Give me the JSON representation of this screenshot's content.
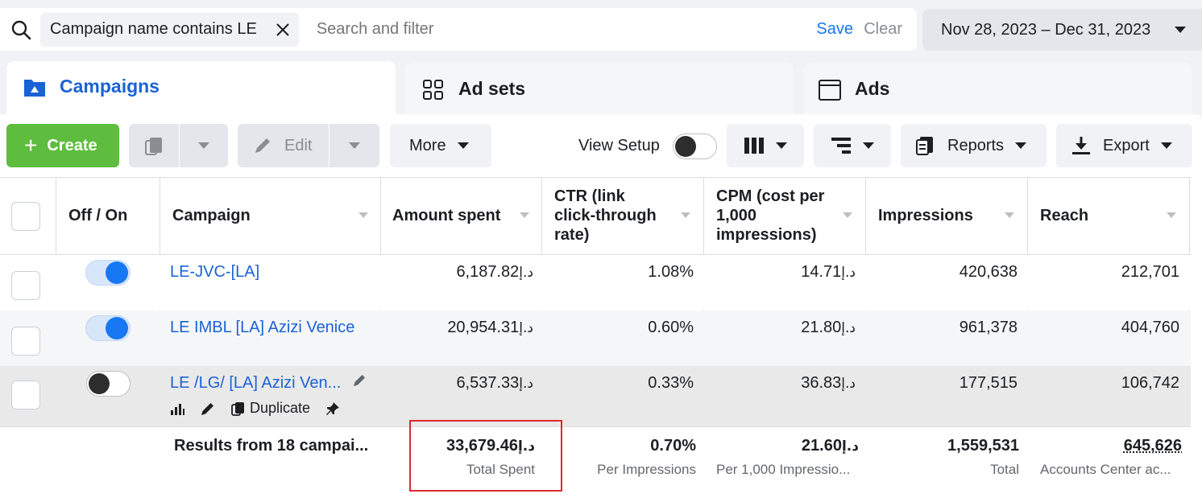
{
  "search": {
    "filter_chip": "Campaign name contains LE",
    "placeholder": "Search and filter",
    "save_label": "Save",
    "clear_label": "Clear"
  },
  "date_range": "Nov 28, 2023 – Dec 31, 2023",
  "tabs": [
    {
      "label": "Campaigns",
      "icon": "folder-icon",
      "active": true
    },
    {
      "label": "Ad sets",
      "icon": "grid-icon",
      "active": false
    },
    {
      "label": "Ads",
      "icon": "window-icon",
      "active": false
    }
  ],
  "toolbar": {
    "create_label": "Create",
    "edit_label": "Edit",
    "more_label": "More",
    "view_setup_label": "View Setup",
    "reports_label": "Reports",
    "export_label": "Export"
  },
  "columns": {
    "off_on": "Off / On",
    "campaign": "Campaign",
    "amount_spent": "Amount spent",
    "ctr": "CTR (link click-through rate)",
    "cpm": "CPM (cost per 1,000 impressions)",
    "impressions": "Impressions",
    "reach": "Reach"
  },
  "currency_symbol": "د.إ",
  "rows": [
    {
      "name": "LE-JVC-[LA]",
      "on": true,
      "amount": "6,187.82",
      "ctr": "1.08%",
      "cpm": "14.71",
      "impressions": "420,638",
      "reach": "212,701"
    },
    {
      "name": "LE IMBL [LA] Azizi Venice",
      "on": true,
      "amount": "20,954.31",
      "ctr": "0.60%",
      "cpm": "21.80",
      "impressions": "961,378",
      "reach": "404,760"
    },
    {
      "name": "LE /LG/ [LA] Azizi Ven...",
      "on": false,
      "amount": "6,537.33",
      "ctr": "0.33%",
      "cpm": "36.83",
      "impressions": "177,515",
      "reach": "106,742",
      "duplicate_label": "Duplicate"
    }
  ],
  "summary": {
    "label": "Results from 18 campai...",
    "amount": "33,679.46",
    "amount_sub": "Total Spent",
    "ctr": "0.70%",
    "ctr_sub": "Per Impressions",
    "cpm": "21.60",
    "cpm_sub": "Per 1,000 Impressio...",
    "impressions": "1,559,531",
    "impressions_sub": "Total",
    "reach": "645,626",
    "reach_sub": "Accounts Center ac..."
  },
  "colors": {
    "accent": "#1877f2",
    "link": "#1a62d6",
    "create_green": "#5ebd3e",
    "highlight": "#e0282e"
  }
}
